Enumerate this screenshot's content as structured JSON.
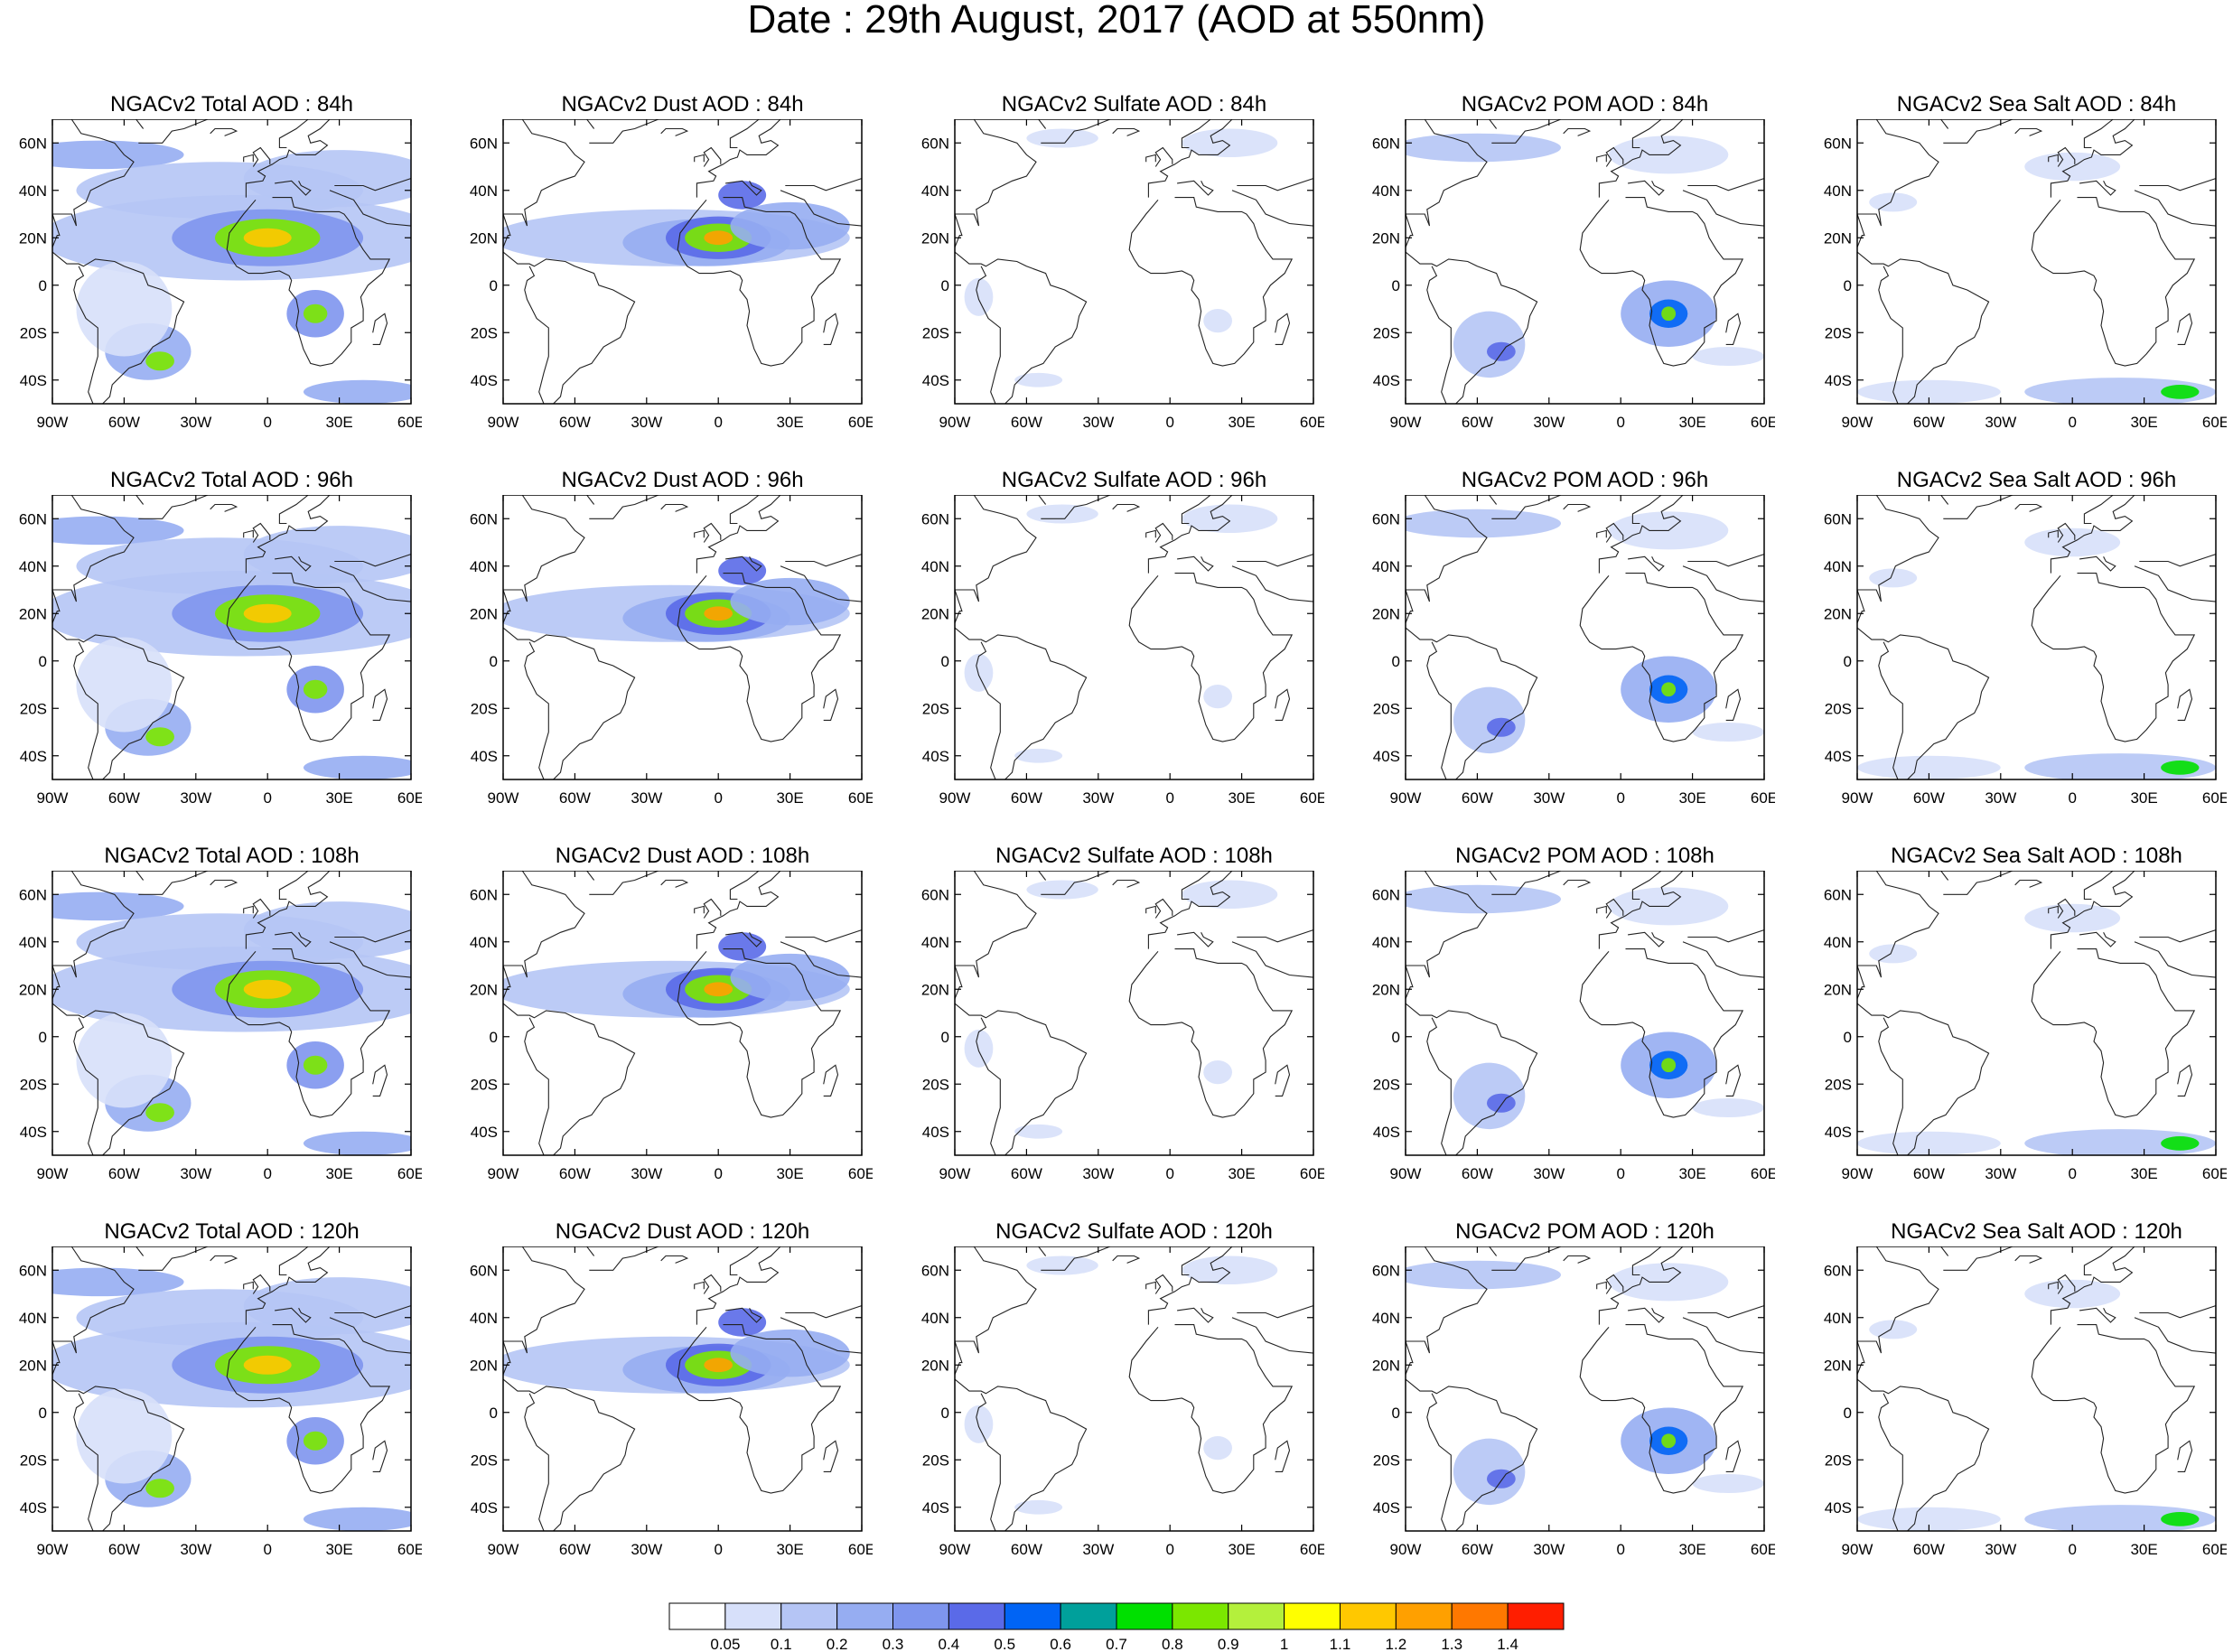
{
  "title": "Date : 29th August, 2017 (AOD at 550nm)",
  "panels": [
    [
      "NGACv2 Total AOD : 84h",
      "NGACv2 Dust AOD : 84h",
      "NGACv2 Sulfate AOD : 84h",
      "NGACv2 POM AOD : 84h",
      "NGACv2 Sea Salt AOD : 84h"
    ],
    [
      "NGACv2 Total AOD : 96h",
      "NGACv2 Dust AOD : 96h",
      "NGACv2 Sulfate AOD : 96h",
      "NGACv2 POM AOD : 96h",
      "NGACv2 Sea Salt AOD : 96h"
    ],
    [
      "NGACv2 Total AOD : 108h",
      "NGACv2 Dust AOD : 108h",
      "NGACv2 Sulfate AOD : 108h",
      "NGACv2 POM AOD : 108h",
      "NGACv2 Sea Salt AOD : 108h"
    ],
    [
      "NGACv2 Total AOD : 120h",
      "NGACv2 Dust AOD : 120h",
      "NGACv2 Sulfate AOD : 120h",
      "NGACv2 POM AOD : 120h",
      "NGACv2 Sea Salt  AOD : 120h"
    ]
  ],
  "lat_ticks": [
    "60N",
    "40N",
    "20N",
    "0",
    "20S",
    "40S"
  ],
  "lon_ticks": [
    "90W",
    "60W",
    "30W",
    "0",
    "30E",
    "60E"
  ],
  "colorbar": {
    "labels": [
      "0.05",
      "0.1",
      "0.2",
      "0.3",
      "0.4",
      "0.5",
      "0.6",
      "0.7",
      "0.8",
      "0.9",
      "1",
      "1.1",
      "1.2",
      "1.3",
      "1.4"
    ],
    "colors": [
      "#ffffff",
      "#d7e0fa",
      "#b5c5f5",
      "#96adf2",
      "#7e95ee",
      "#5a6ae8",
      "#0064f5",
      "#00a09b",
      "#00e000",
      "#7be700",
      "#b4f03c",
      "#ffff00",
      "#ffc800",
      "#ffa000",
      "#ff7800",
      "#ff1e00"
    ]
  }
}
